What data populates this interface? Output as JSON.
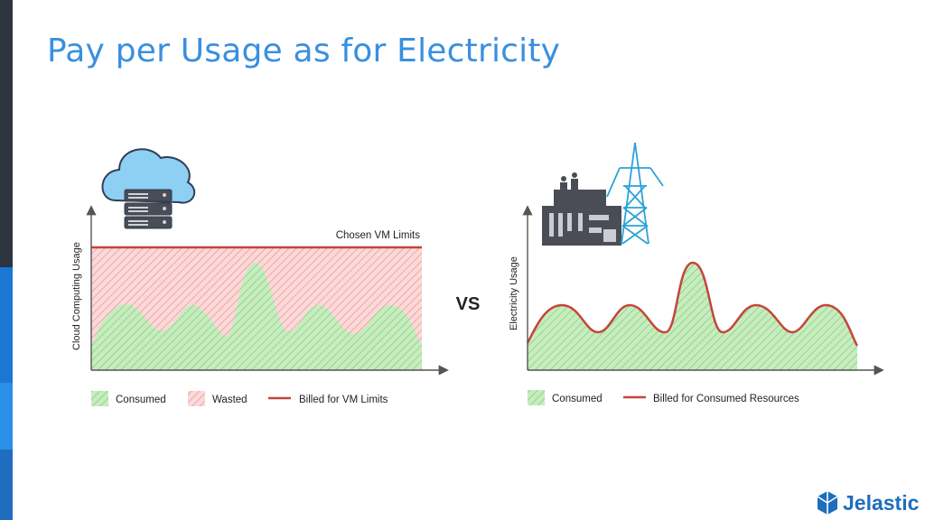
{
  "slide": {
    "title": "Pay per Usage as for Electricity",
    "vs_label": "VS",
    "logo_text": "Jelastic"
  },
  "colors": {
    "title": "#3a8fe0",
    "consumed_fill": "#c8ecc0",
    "consumed_hatch": "#8fd88a",
    "wasted_fill": "#fbd9d9",
    "wasted_hatch": "#f0a5a5",
    "billed_line": "#c4463a",
    "axis": "#555555",
    "label_text": "#222222",
    "sidebar_top": "#2c3440",
    "sidebar_mid": "#1b77d4",
    "sidebar_low": "#2a8fe6",
    "sidebar_bottom": "#1f6dbf",
    "logo_blue": "#1f6dbf"
  },
  "cloud": {
    "y_axis_label": "Cloud Computing Usage",
    "limit_label": "Chosen VM Limits",
    "icon": "cloud-server-icon",
    "legend": [
      {
        "label": "Consumed",
        "swatch": "consumed"
      },
      {
        "label": "Wasted",
        "swatch": "wasted"
      },
      {
        "label": "Billed for VM Limits",
        "swatch": "line"
      }
    ]
  },
  "electricity": {
    "y_axis_label": "Electricity Usage",
    "icon": "power-plant-icon",
    "legend": [
      {
        "label": "Consumed",
        "swatch": "consumed"
      },
      {
        "label": "Billed for Consumed Resources",
        "swatch": "line"
      }
    ]
  }
}
